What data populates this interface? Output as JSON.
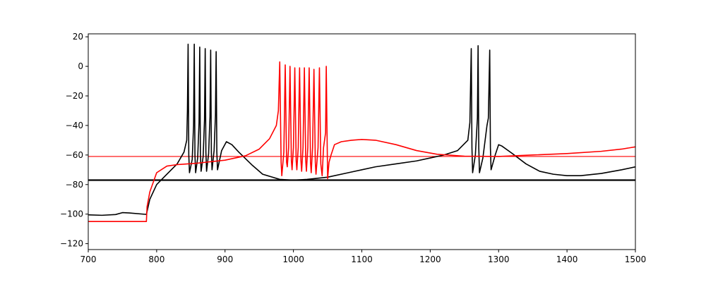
{
  "chart_data": {
    "type": "line",
    "title": "",
    "xlabel": "",
    "ylabel": "",
    "xlim": [
      700,
      1500
    ],
    "ylim": [
      -124,
      22
    ],
    "xticks": [
      700,
      800,
      900,
      1000,
      1100,
      1200,
      1300,
      1400,
      1500
    ],
    "yticks": [
      -120,
      -100,
      -80,
      -60,
      -40,
      -20,
      0,
      20
    ],
    "grid": false,
    "legend": "none",
    "series": [
      {
        "color": "#000000",
        "style": "thick",
        "points": [
          [
            700,
            -77
          ],
          [
            1500,
            -77
          ]
        ]
      },
      {
        "color": "#ff0000",
        "style": "thin",
        "points": [
          [
            700,
            -61
          ],
          [
            1500,
            -61
          ]
        ]
      },
      {
        "color": "#000000",
        "style": "trace",
        "points": [
          [
            700,
            -100.5
          ],
          [
            720,
            -100.8
          ],
          [
            740,
            -100.3
          ],
          [
            750,
            -99
          ],
          [
            760,
            -99.2
          ],
          [
            785,
            -100.2
          ],
          [
            790,
            -90
          ],
          [
            800,
            -80
          ],
          [
            815,
            -73
          ],
          [
            830,
            -66
          ],
          [
            840,
            -58
          ],
          [
            844,
            -50
          ],
          [
            845,
            -30
          ],
          [
            846,
            15
          ],
          [
            847,
            -60
          ],
          [
            848,
            -72
          ],
          [
            852,
            -63
          ],
          [
            854,
            -40
          ],
          [
            855,
            15
          ],
          [
            856,
            -60
          ],
          [
            857,
            -72
          ],
          [
            860,
            -62
          ],
          [
            862,
            -38
          ],
          [
            863,
            13
          ],
          [
            864,
            -60
          ],
          [
            865,
            -71
          ],
          [
            868,
            -61
          ],
          [
            870,
            -36
          ],
          [
            871,
            12
          ],
          [
            872,
            -58
          ],
          [
            873,
            -71
          ],
          [
            876,
            -59
          ],
          [
            878,
            -34
          ],
          [
            879,
            11
          ],
          [
            880,
            -58
          ],
          [
            881,
            -70
          ],
          [
            884,
            -57
          ],
          [
            886,
            -33
          ],
          [
            887,
            10
          ],
          [
            888,
            -58
          ],
          [
            889,
            -70
          ],
          [
            895,
            -57
          ],
          [
            902,
            -51
          ],
          [
            910,
            -53
          ],
          [
            920,
            -58
          ],
          [
            940,
            -67
          ],
          [
            955,
            -73
          ],
          [
            980,
            -76.5
          ],
          [
            1000,
            -77
          ],
          [
            1020,
            -76.5
          ],
          [
            1050,
            -75
          ],
          [
            1080,
            -72
          ],
          [
            1100,
            -70
          ],
          [
            1120,
            -68
          ],
          [
            1150,
            -66
          ],
          [
            1180,
            -64
          ],
          [
            1200,
            -62
          ],
          [
            1220,
            -60
          ],
          [
            1240,
            -57
          ],
          [
            1255,
            -50
          ],
          [
            1258,
            -38
          ],
          [
            1260,
            12
          ],
          [
            1261,
            -55
          ],
          [
            1262,
            -72
          ],
          [
            1266,
            -60
          ],
          [
            1269,
            -35
          ],
          [
            1270,
            14
          ],
          [
            1271,
            -55
          ],
          [
            1272,
            -72
          ],
          [
            1277,
            -62
          ],
          [
            1283,
            -40
          ],
          [
            1285,
            -35
          ],
          [
            1287,
            11
          ],
          [
            1288,
            -55
          ],
          [
            1289,
            -70
          ],
          [
            1295,
            -60
          ],
          [
            1300,
            -53
          ],
          [
            1305,
            -54
          ],
          [
            1320,
            -59
          ],
          [
            1340,
            -66
          ],
          [
            1360,
            -71
          ],
          [
            1380,
            -73
          ],
          [
            1400,
            -74
          ],
          [
            1420,
            -74
          ],
          [
            1450,
            -72.5
          ],
          [
            1480,
            -70
          ],
          [
            1500,
            -68
          ]
        ]
      },
      {
        "color": "#ff0000",
        "style": "trace",
        "points": [
          [
            700,
            -105
          ],
          [
            785,
            -105
          ],
          [
            786,
            -95
          ],
          [
            790,
            -85
          ],
          [
            800,
            -72
          ],
          [
            815,
            -67.5
          ],
          [
            830,
            -66.5
          ],
          [
            860,
            -65.5
          ],
          [
            900,
            -63.5
          ],
          [
            930,
            -60.5
          ],
          [
            950,
            -56
          ],
          [
            965,
            -49
          ],
          [
            975,
            -40
          ],
          [
            978,
            -30
          ],
          [
            980,
            3
          ],
          [
            982,
            -65
          ],
          [
            983,
            -74
          ],
          [
            986,
            -58
          ],
          [
            988,
            1
          ],
          [
            990,
            -65
          ],
          [
            991,
            -68
          ],
          [
            993,
            -55
          ],
          [
            995,
            0
          ],
          [
            997,
            -64
          ],
          [
            998,
            -70
          ],
          [
            1000,
            -55
          ],
          [
            1002,
            -1
          ],
          [
            1004,
            -64
          ],
          [
            1005,
            -70
          ],
          [
            1007,
            -55
          ],
          [
            1009,
            -1
          ],
          [
            1011,
            -64
          ],
          [
            1012,
            -71
          ],
          [
            1014,
            -55
          ],
          [
            1016,
            -1
          ],
          [
            1018,
            -64
          ],
          [
            1019,
            -71
          ],
          [
            1021,
            -55
          ],
          [
            1023,
            -1
          ],
          [
            1025,
            -65
          ],
          [
            1026,
            -72
          ],
          [
            1028,
            -55
          ],
          [
            1030,
            -2
          ],
          [
            1032,
            -65
          ],
          [
            1033,
            -73
          ],
          [
            1036,
            -55
          ],
          [
            1038,
            -1
          ],
          [
            1040,
            -66
          ],
          [
            1042,
            -74
          ],
          [
            1044,
            -55
          ],
          [
            1047,
            -45
          ],
          [
            1048,
            0
          ],
          [
            1049,
            -40
          ],
          [
            1050,
            -76
          ],
          [
            1052,
            -65
          ],
          [
            1055,
            -60
          ],
          [
            1060,
            -53
          ],
          [
            1070,
            -51
          ],
          [
            1085,
            -50
          ],
          [
            1100,
            -49.5
          ],
          [
            1120,
            -50
          ],
          [
            1150,
            -53
          ],
          [
            1180,
            -57
          ],
          [
            1210,
            -59.5
          ],
          [
            1250,
            -60.8
          ],
          [
            1300,
            -61
          ],
          [
            1350,
            -60
          ],
          [
            1400,
            -59
          ],
          [
            1450,
            -57.5
          ],
          [
            1480,
            -56
          ],
          [
            1500,
            -54.5
          ]
        ]
      }
    ]
  }
}
